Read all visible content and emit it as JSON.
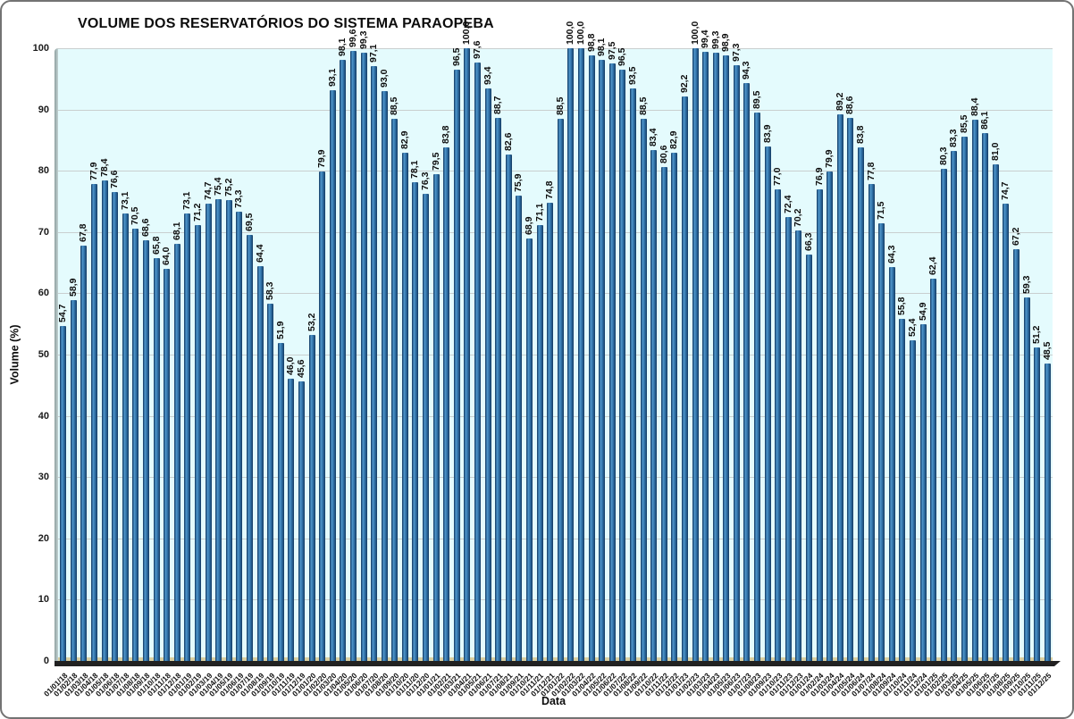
{
  "chart_data": {
    "type": "bar",
    "title": "VOLUME DOS RESERVATÓRIOS DO SISTEMA PARAOPEBA",
    "xlabel": "Data",
    "ylabel": "Volume (%)",
    "ylim": [
      0,
      100
    ],
    "ytick_step": 10,
    "grid": true,
    "legend": "none",
    "decimal_separator": ",",
    "categories": [
      "01/01/18",
      "01/02/18",
      "01/03/18",
      "01/04/18",
      "01/05/18",
      "01/06/18",
      "01/07/18",
      "01/08/18",
      "01/09/18",
      "01/10/18",
      "01/11/18",
      "01/12/18",
      "01/01/19",
      "01/02/19",
      "01/03/19",
      "01/04/19",
      "01/05/19",
      "01/06/19",
      "01/07/19",
      "01/08/19",
      "01/09/19",
      "01/10/19",
      "01/11/19",
      "01/12/19",
      "01/01/20",
      "01/02/20",
      "01/03/20",
      "01/04/20",
      "01/05/20",
      "01/06/20",
      "01/07/20",
      "01/08/20",
      "01/09/20",
      "01/10/20",
      "01/11/20",
      "01/12/20",
      "01/01/21",
      "01/02/21",
      "01/03/21",
      "01/04/21",
      "01/05/21",
      "01/06/21",
      "01/07/21",
      "01/08/21",
      "01/09/21",
      "01/10/21",
      "01/11/21",
      "01/12/21",
      "01/01/22",
      "01/02/22",
      "01/03/22",
      "01/04/22",
      "01/05/22",
      "01/06/22",
      "01/07/22",
      "01/08/22",
      "01/09/22",
      "01/10/22",
      "01/11/22",
      "01/12/22",
      "01/01/23",
      "01/02/23",
      "01/03/23",
      "01/04/23",
      "01/05/23",
      "01/06/23",
      "01/07/23",
      "01/08/23",
      "01/09/23",
      "01/10/23",
      "01/11/23",
      "01/12/23",
      "01/01/24",
      "01/02/24",
      "01/03/24",
      "01/04/24",
      "01/05/24",
      "01/06/24",
      "01/07/24",
      "01/08/24",
      "01/09/24",
      "01/10/24",
      "01/11/24",
      "01/12/24",
      "01/01/25",
      "01/02/25",
      "01/03/25",
      "01/04/25",
      "01/05/25",
      "01/06/25",
      "01/07/25",
      "01/08/25",
      "01/09/25",
      "01/10/25",
      "01/11/25",
      "01/12/25"
    ],
    "values": [
      54.7,
      58.9,
      67.8,
      77.9,
      78.4,
      76.6,
      73.1,
      70.5,
      68.6,
      65.8,
      64.0,
      68.1,
      73.1,
      71.2,
      74.7,
      75.4,
      75.2,
      73.3,
      69.5,
      64.4,
      58.3,
      51.9,
      46.0,
      45.6,
      53.2,
      79.9,
      93.1,
      98.1,
      99.6,
      99.3,
      97.1,
      93.0,
      88.5,
      82.9,
      78.1,
      76.3,
      79.5,
      83.8,
      96.5,
      100.0,
      97.6,
      93.4,
      88.7,
      82.6,
      75.9,
      68.9,
      71.1,
      74.8,
      88.5,
      100.0,
      100.0,
      98.8,
      98.1,
      97.5,
      96.5,
      93.5,
      88.5,
      83.4,
      80.6,
      82.9,
      92.2,
      100.0,
      99.4,
      99.3,
      98.9,
      97.3,
      94.3,
      89.5,
      83.9,
      77.0,
      72.4,
      70.2,
      66.3,
      76.9,
      79.9,
      89.2,
      88.6,
      83.8,
      77.8,
      71.5,
      64.3,
      55.8,
      52.4,
      54.9,
      62.4,
      80.3,
      83.3,
      85.5,
      88.4,
      86.1,
      81.0,
      74.7,
      67.2,
      59.3,
      51.2,
      48.5
    ],
    "colors": {
      "bar_fill": "#2e6da4",
      "bar_highlight": "#5097ca",
      "bar_edge": "#16395c",
      "plot_background": "#e4fbfd",
      "gridline": "#c9cfcf",
      "floor_dark": "#212121",
      "floor_light": "#d9cfa0",
      "side_wall": "#a6b4b4",
      "page_background": "#ffffff"
    }
  }
}
